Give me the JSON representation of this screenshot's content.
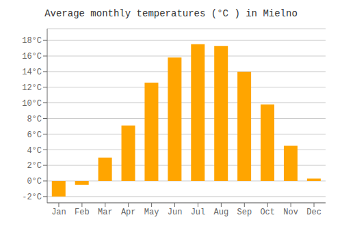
{
  "chart_data": {
    "type": "bar",
    "title": "Average monthly temperatures (°C ) in Mielno",
    "categories": [
      "Jan",
      "Feb",
      "Mar",
      "Apr",
      "May",
      "Jun",
      "Jul",
      "Aug",
      "Sep",
      "Oct",
      "Nov",
      "Dec"
    ],
    "values": [
      -2.0,
      -0.5,
      3.0,
      7.1,
      12.6,
      15.8,
      17.5,
      17.3,
      14.0,
      9.8,
      4.5,
      0.3
    ],
    "color": "#FFA500",
    "ylim": [
      -2.8,
      19.5
    ],
    "yticks": [
      {
        "value": -2,
        "label": "-2°C"
      },
      {
        "value": 0,
        "label": "0°C"
      },
      {
        "value": 2,
        "label": "2°C"
      },
      {
        "value": 4,
        "label": "4°C"
      },
      {
        "value": 6,
        "label": "6°C"
      },
      {
        "value": 8,
        "label": "8°C"
      },
      {
        "value": 10,
        "label": "10°C"
      },
      {
        "value": 12,
        "label": "12°C"
      },
      {
        "value": 14,
        "label": "14°C"
      },
      {
        "value": 16,
        "label": "16°C"
      },
      {
        "value": 18,
        "label": "18°C"
      }
    ],
    "grid": true
  }
}
